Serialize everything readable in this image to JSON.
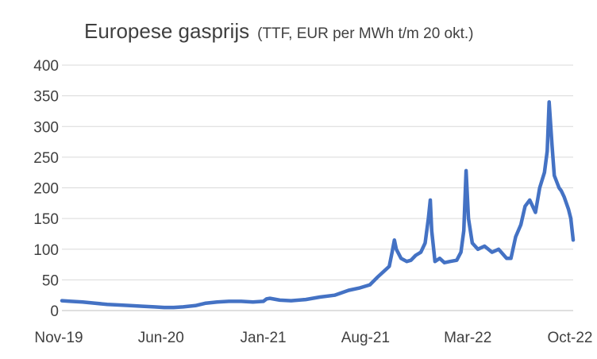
{
  "chart_data": {
    "type": "line",
    "title": "Europese gasprijs",
    "subtitle": "(TTF, EUR per MWh t/m 20 okt.)",
    "xlabel": "",
    "ylabel": "",
    "ylim": [
      0,
      400
    ],
    "yticks": [
      0,
      50,
      100,
      150,
      200,
      250,
      300,
      350,
      400
    ],
    "xticks": [
      "Nov-19",
      "Jun-20",
      "Jan-21",
      "Aug-21",
      "Mar-22",
      "Oct-22"
    ],
    "xlim": [
      "2019-11-01",
      "2022-10-20"
    ],
    "grid": true,
    "legend": "none",
    "series_color": "#4472C4",
    "series": [
      {
        "x": [
          "2019-11-01",
          "2019-11-20",
          "2019-12-15",
          "2020-01-10",
          "2020-02-05",
          "2020-03-01",
          "2020-03-25",
          "2020-04-20",
          "2020-05-15",
          "2020-06-05",
          "2020-06-25",
          "2020-07-15",
          "2020-08-10",
          "2020-09-01",
          "2020-09-25",
          "2020-10-20",
          "2020-11-15",
          "2020-12-10",
          "2021-01-01",
          "2021-01-08",
          "2021-01-15",
          "2021-02-05",
          "2021-03-01",
          "2021-04-01",
          "2021-05-01",
          "2021-06-01",
          "2021-07-01",
          "2021-07-25",
          "2021-08-15",
          "2021-09-01",
          "2021-09-15",
          "2021-09-25",
          "2021-10-01",
          "2021-10-06",
          "2021-10-10",
          "2021-10-20",
          "2021-11-01",
          "2021-11-10",
          "2021-11-20",
          "2021-12-01",
          "2021-12-10",
          "2021-12-17",
          "2021-12-21",
          "2021-12-24",
          "2021-12-31",
          "2022-01-10",
          "2022-01-20",
          "2022-02-01",
          "2022-02-15",
          "2022-02-24",
          "2022-03-02",
          "2022-03-07",
          "2022-03-12",
          "2022-03-20",
          "2022-04-01",
          "2022-04-15",
          "2022-05-01",
          "2022-05-15",
          "2022-06-01",
          "2022-06-10",
          "2022-06-20",
          "2022-07-01",
          "2022-07-10",
          "2022-07-20",
          "2022-08-01",
          "2022-08-10",
          "2022-08-20",
          "2022-08-26",
          "2022-08-30",
          "2022-09-05",
          "2022-09-10",
          "2022-09-20",
          "2022-09-25",
          "2022-10-01",
          "2022-10-10",
          "2022-10-15",
          "2022-10-20"
        ],
        "y": [
          16,
          15,
          14,
          12,
          10,
          9,
          8,
          7,
          6,
          5,
          5,
          6,
          8,
          12,
          14,
          15,
          15,
          14,
          15,
          19,
          20,
          17,
          16,
          18,
          22,
          25,
          33,
          37,
          42,
          55,
          65,
          72,
          95,
          115,
          100,
          85,
          80,
          82,
          90,
          95,
          110,
          150,
          180,
          130,
          80,
          85,
          78,
          80,
          82,
          95,
          130,
          228,
          150,
          110,
          100,
          105,
          95,
          100,
          85,
          85,
          120,
          140,
          170,
          180,
          160,
          200,
          225,
          260,
          340,
          270,
          220,
          200,
          195,
          185,
          165,
          150,
          115
        ]
      }
    ]
  }
}
